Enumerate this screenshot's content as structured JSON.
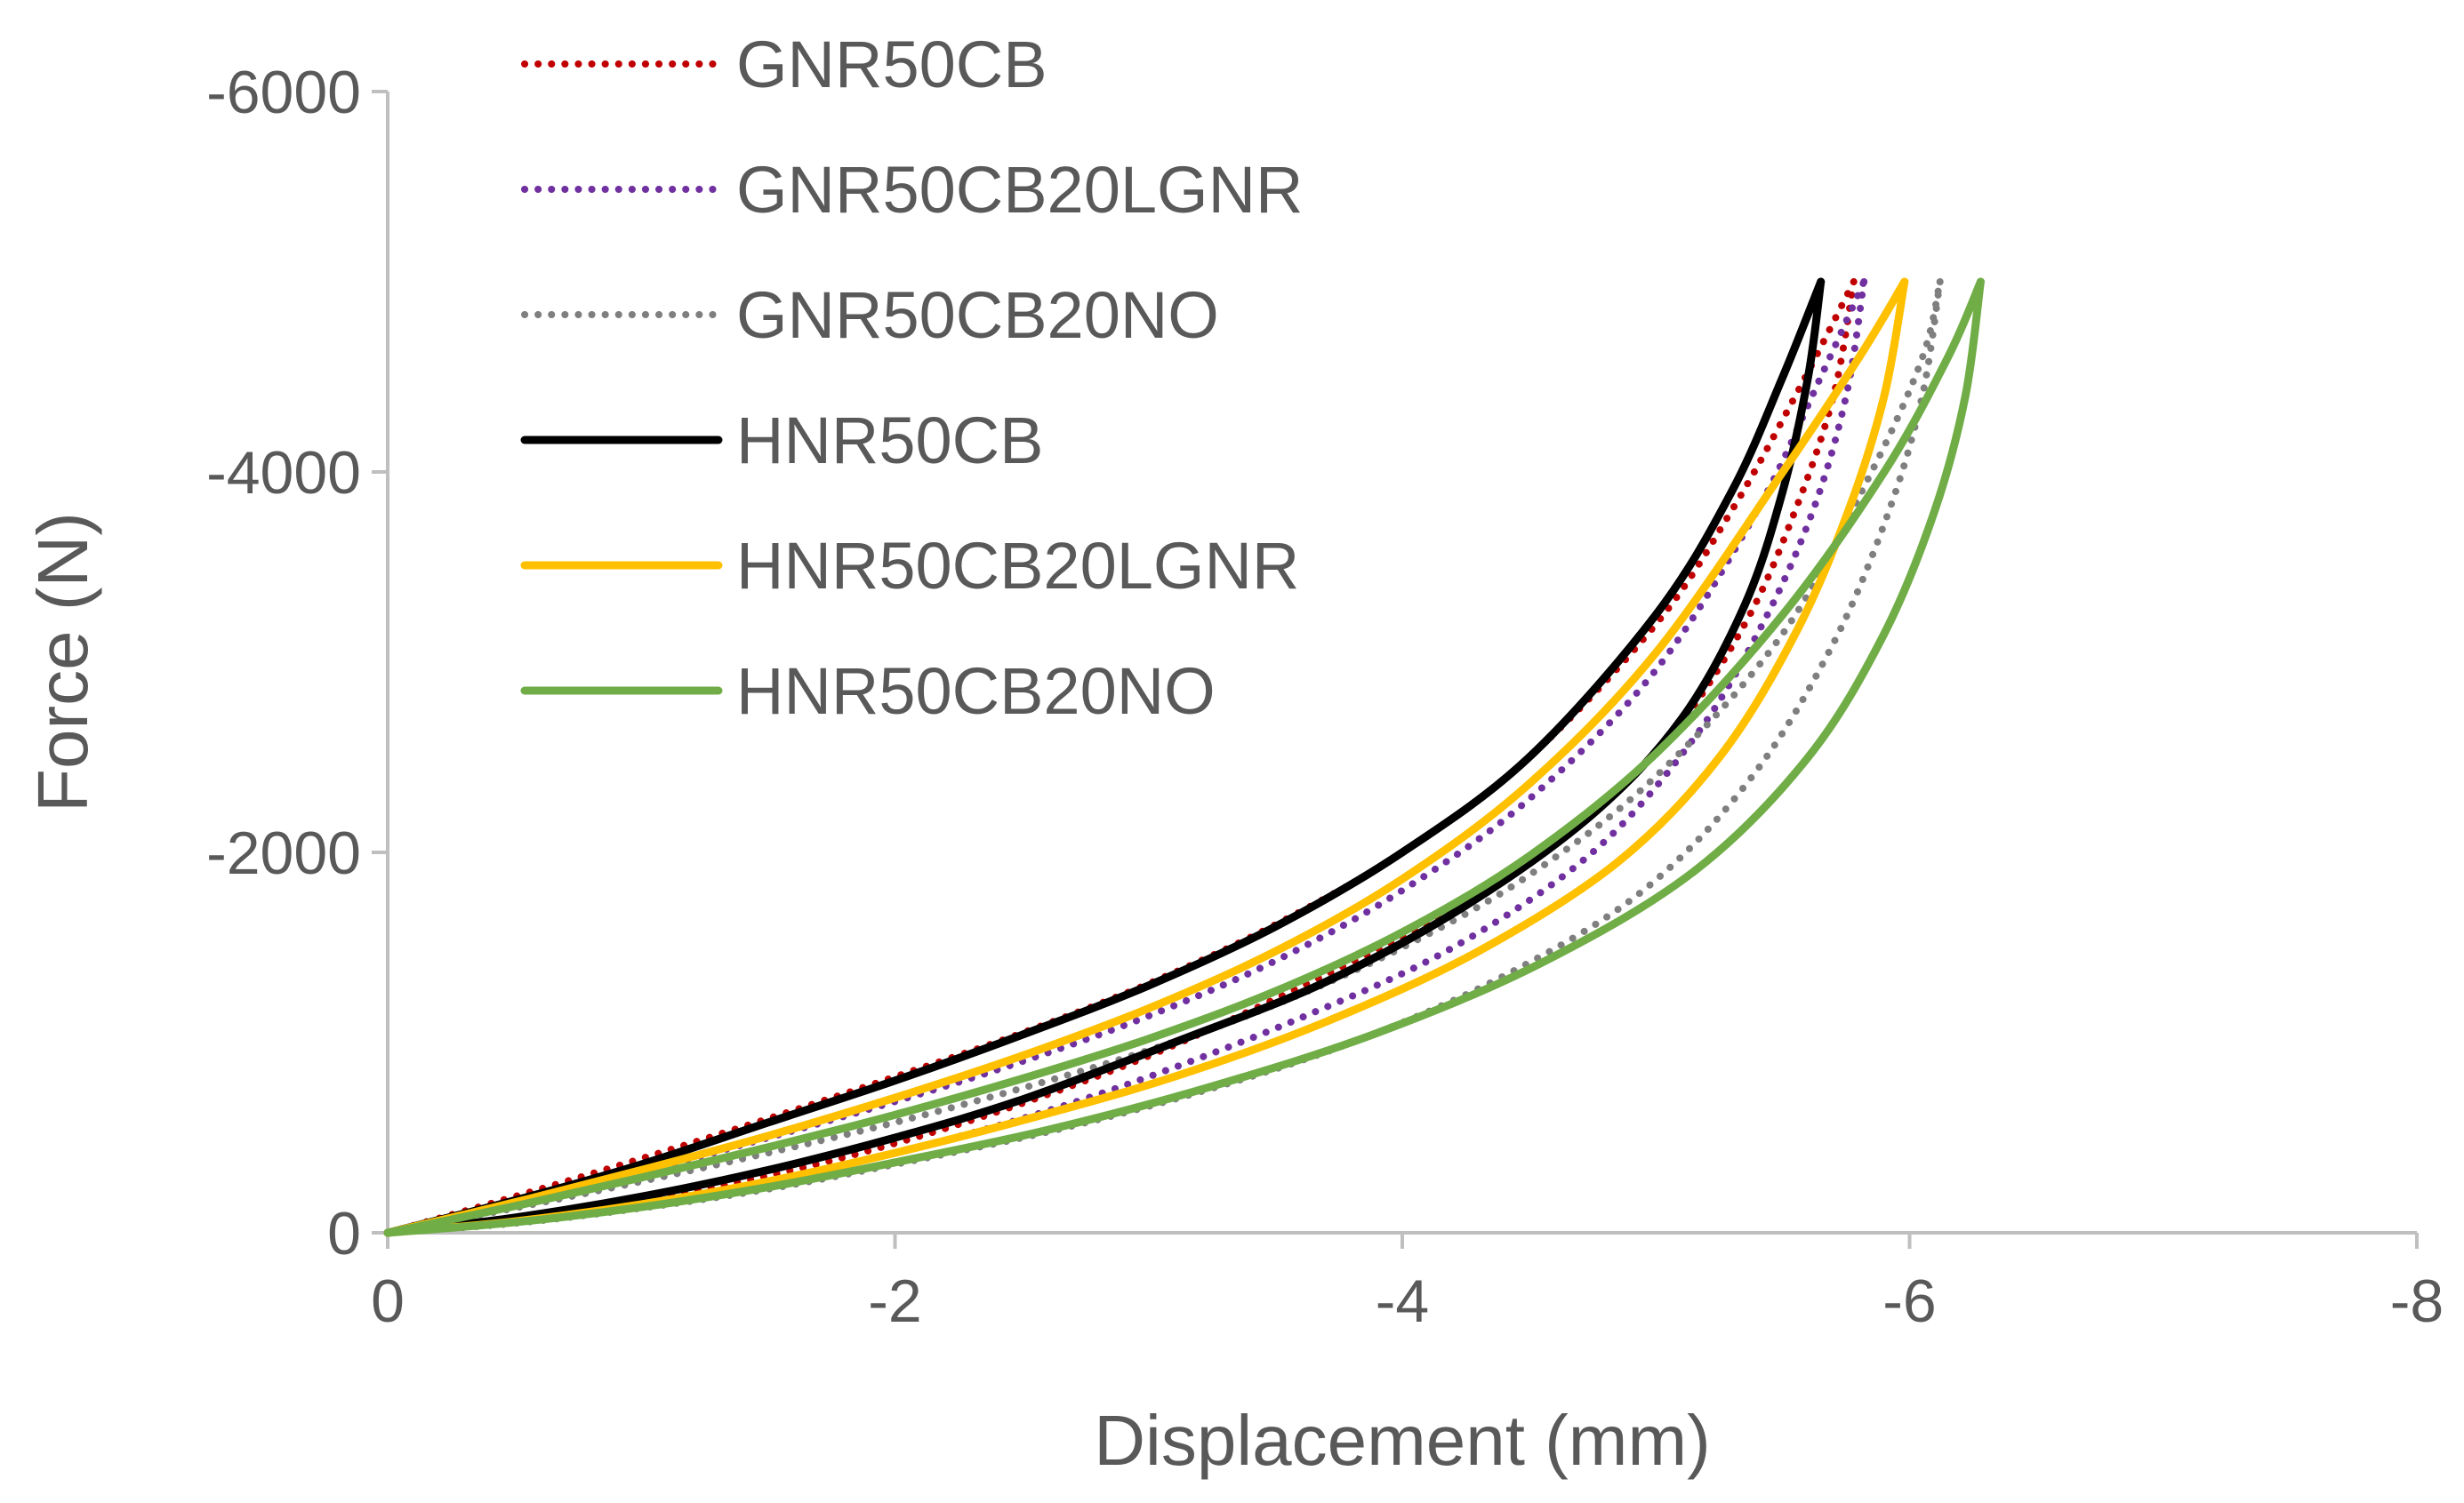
{
  "chart_data": {
    "type": "line",
    "title": "",
    "xlabel": "Displacement (mm)",
    "ylabel": "Force (N)",
    "xlim": [
      0,
      -8
    ],
    "ylim": [
      0,
      -6000
    ],
    "xticks": [
      0,
      -2,
      -4,
      -6,
      -8
    ],
    "yticks": [
      0,
      -2000,
      -4000,
      -6000
    ],
    "xtick_labels": [
      "0",
      "-2",
      "-4",
      "-6",
      "-8"
    ],
    "ytick_labels": [
      "0",
      "-2000",
      "-4000",
      "-6000"
    ],
    "grid": false,
    "legend_position": "top-left",
    "series": [
      {
        "name": "GNR50CB",
        "color": "#C00000",
        "dash": "dotted",
        "peak_displacement": -5.78,
        "peak_force": -5000,
        "loading": [
          [
            0,
            0
          ],
          [
            -0.5,
            -190
          ],
          [
            -1,
            -390
          ],
          [
            -1.5,
            -600
          ],
          [
            -2,
            -820
          ],
          [
            -2.5,
            -1050
          ],
          [
            -3,
            -1310
          ],
          [
            -3.5,
            -1620
          ],
          [
            -4,
            -2000
          ],
          [
            -4.5,
            -2500
          ],
          [
            -5,
            -3200
          ],
          [
            -5.3,
            -3800
          ],
          [
            -5.55,
            -4400
          ],
          [
            -5.78,
            -5000
          ]
        ],
        "unloading": [
          [
            -5.78,
            -5000
          ],
          [
            -5.7,
            -4400
          ],
          [
            -5.55,
            -3800
          ],
          [
            -5.35,
            -3200
          ],
          [
            -5.05,
            -2600
          ],
          [
            -4.65,
            -2100
          ],
          [
            -4.1,
            -1630
          ],
          [
            -3.5,
            -1230
          ],
          [
            -3,
            -930
          ],
          [
            -2.5,
            -680
          ],
          [
            -2,
            -470
          ],
          [
            -1.5,
            -300
          ],
          [
            -1,
            -170
          ],
          [
            -0.5,
            -70
          ],
          [
            0,
            0
          ]
        ]
      },
      {
        "name": "GNR50CB20LGNR",
        "color": "#7030A0",
        "dash": "dotted",
        "peak_displacement": -5.82,
        "peak_force": -5000,
        "loading": [
          [
            0,
            0
          ],
          [
            -0.5,
            -155
          ],
          [
            -1,
            -320
          ],
          [
            -1.5,
            -500
          ],
          [
            -2,
            -690
          ],
          [
            -2.5,
            -900
          ],
          [
            -3,
            -1140
          ],
          [
            -3.5,
            -1430
          ],
          [
            -4,
            -1800
          ],
          [
            -4.5,
            -2280
          ],
          [
            -5,
            -2960
          ],
          [
            -5.4,
            -3800
          ],
          [
            -5.65,
            -4500
          ],
          [
            -5.82,
            -5000
          ]
        ],
        "unloading": [
          [
            -5.82,
            -5000
          ],
          [
            -5.75,
            -4400
          ],
          [
            -5.62,
            -3800
          ],
          [
            -5.42,
            -3200
          ],
          [
            -5.15,
            -2600
          ],
          [
            -4.75,
            -2000
          ],
          [
            -4.2,
            -1500
          ],
          [
            -3.6,
            -1130
          ],
          [
            -3,
            -820
          ],
          [
            -2.5,
            -600
          ],
          [
            -2,
            -420
          ],
          [
            -1.5,
            -270
          ],
          [
            -1,
            -150
          ],
          [
            -0.5,
            -60
          ],
          [
            0,
            0
          ]
        ]
      },
      {
        "name": "GNR50CB20NO",
        "color": "#7F7F7F",
        "dash": "dotted",
        "peak_displacement": -6.12,
        "peak_force": -5000,
        "loading": [
          [
            0,
            0
          ],
          [
            -0.5,
            -130
          ],
          [
            -1,
            -270
          ],
          [
            -1.5,
            -420
          ],
          [
            -2,
            -580
          ],
          [
            -2.5,
            -760
          ],
          [
            -3,
            -960
          ],
          [
            -3.5,
            -1200
          ],
          [
            -4,
            -1500
          ],
          [
            -4.5,
            -1880
          ],
          [
            -5,
            -2400
          ],
          [
            -5.5,
            -3150
          ],
          [
            -5.85,
            -4000
          ],
          [
            -6.05,
            -4600
          ],
          [
            -6.12,
            -5000
          ]
        ],
        "unloading": [
          [
            -6.12,
            -5000
          ],
          [
            -6.05,
            -4400
          ],
          [
            -5.92,
            -3800
          ],
          [
            -5.7,
            -3100
          ],
          [
            -5.38,
            -2400
          ],
          [
            -4.95,
            -1800
          ],
          [
            -4.4,
            -1350
          ],
          [
            -3.8,
            -1000
          ],
          [
            -3.2,
            -740
          ],
          [
            -2.6,
            -530
          ],
          [
            -2,
            -360
          ],
          [
            -1.5,
            -230
          ],
          [
            -1,
            -130
          ],
          [
            -0.5,
            -50
          ],
          [
            0,
            0
          ]
        ]
      },
      {
        "name": "HNR50CB",
        "color": "#000000",
        "dash": "solid",
        "peak_displacement": -5.65,
        "peak_force": -5000,
        "loading": [
          [
            0,
            0
          ],
          [
            -0.5,
            -170
          ],
          [
            -1,
            -360
          ],
          [
            -1.5,
            -580
          ],
          [
            -2,
            -800
          ],
          [
            -2.5,
            -1040
          ],
          [
            -3,
            -1300
          ],
          [
            -3.5,
            -1610
          ],
          [
            -4,
            -2000
          ],
          [
            -4.5,
            -2500
          ],
          [
            -5,
            -3250
          ],
          [
            -5.3,
            -3900
          ],
          [
            -5.5,
            -4500
          ],
          [
            -5.65,
            -5000
          ]
        ],
        "unloading": [
          [
            -5.65,
            -5000
          ],
          [
            -5.6,
            -4500
          ],
          [
            -5.5,
            -3900
          ],
          [
            -5.35,
            -3300
          ],
          [
            -5.1,
            -2700
          ],
          [
            -4.75,
            -2200
          ],
          [
            -4.25,
            -1720
          ],
          [
            -3.7,
            -1320
          ],
          [
            -3.1,
            -1000
          ],
          [
            -2.5,
            -700
          ],
          [
            -2,
            -500
          ],
          [
            -1.5,
            -330
          ],
          [
            -1,
            -190
          ],
          [
            -0.5,
            -80
          ],
          [
            0,
            0
          ]
        ]
      },
      {
        "name": "HNR50CB20LGNR",
        "color": "#FFC000",
        "dash": "solid",
        "peak_displacement": -5.98,
        "peak_force": -5000,
        "loading": [
          [
            0,
            0
          ],
          [
            -0.5,
            -160
          ],
          [
            -1,
            -330
          ],
          [
            -1.5,
            -510
          ],
          [
            -2,
            -710
          ],
          [
            -2.5,
            -930
          ],
          [
            -3,
            -1180
          ],
          [
            -3.5,
            -1480
          ],
          [
            -4,
            -1860
          ],
          [
            -4.5,
            -2360
          ],
          [
            -5,
            -3050
          ],
          [
            -5.5,
            -4000
          ],
          [
            -5.8,
            -4600
          ],
          [
            -5.98,
            -5000
          ]
        ],
        "unloading": [
          [
            -5.98,
            -5000
          ],
          [
            -5.9,
            -4400
          ],
          [
            -5.76,
            -3800
          ],
          [
            -5.55,
            -3150
          ],
          [
            -5.25,
            -2500
          ],
          [
            -4.85,
            -1950
          ],
          [
            -4.3,
            -1480
          ],
          [
            -3.7,
            -1110
          ],
          [
            -3.1,
            -820
          ],
          [
            -2.5,
            -590
          ],
          [
            -2,
            -420
          ],
          [
            -1.5,
            -270
          ],
          [
            -1,
            -150
          ],
          [
            -0.5,
            -60
          ],
          [
            0,
            0
          ]
        ]
      },
      {
        "name": "HNR50CB20NO",
        "color": "#70AD47",
        "dash": "solid",
        "peak_displacement": -6.28,
        "peak_force": -5000,
        "loading": [
          [
            0,
            0
          ],
          [
            -0.5,
            -140
          ],
          [
            -1,
            -290
          ],
          [
            -1.5,
            -450
          ],
          [
            -2,
            -620
          ],
          [
            -2.5,
            -810
          ],
          [
            -3,
            -1020
          ],
          [
            -3.5,
            -1270
          ],
          [
            -4,
            -1580
          ],
          [
            -4.5,
            -1980
          ],
          [
            -5,
            -2520
          ],
          [
            -5.5,
            -3250
          ],
          [
            -5.9,
            -4000
          ],
          [
            -6.15,
            -4600
          ],
          [
            -6.28,
            -5000
          ]
        ],
        "unloading": [
          [
            -6.28,
            -5000
          ],
          [
            -6.22,
            -4400
          ],
          [
            -6.1,
            -3800
          ],
          [
            -5.9,
            -3150
          ],
          [
            -5.6,
            -2500
          ],
          [
            -5.15,
            -1900
          ],
          [
            -4.55,
            -1420
          ],
          [
            -3.9,
            -1050
          ],
          [
            -3.25,
            -770
          ],
          [
            -2.6,
            -540
          ],
          [
            -2,
            -370
          ],
          [
            -1.5,
            -240
          ],
          [
            -1,
            -135
          ],
          [
            -0.5,
            -55
          ],
          [
            0,
            0
          ]
        ]
      }
    ]
  }
}
